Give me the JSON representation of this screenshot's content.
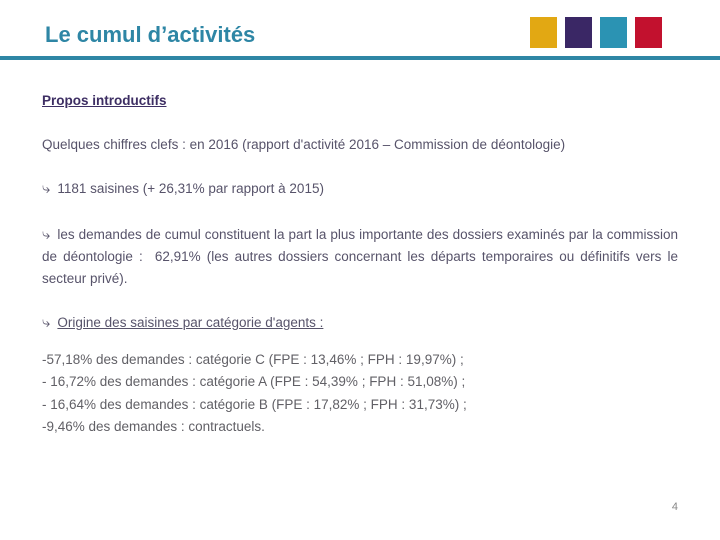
{
  "slide": {
    "title": "Le cumul d’activités",
    "accent_color": "#2E86A5",
    "logo_squares": [
      {
        "name": "gold-square",
        "color": "#E2A813"
      },
      {
        "name": "purple-square",
        "color": "#3A2765"
      },
      {
        "name": "teal-square",
        "color": "#2B93B3"
      },
      {
        "name": "red-square",
        "color": "#C2112E"
      }
    ],
    "page_number": "4"
  },
  "body": {
    "heading": "Propos introductifs",
    "intro": "Quelques chiffres clefs : en 2016 (rapport d'activité 2016 – Commission de déontologie)",
    "bullet_icon": "⤷",
    "bullet1": "1181 saisines (+ 26,31% par rapport à 2015)",
    "bullet2": "les demandes de cumul constituent la part la plus importante des dossiers examinés par la commission de déontologie :  62,91% (les autres dossiers concernant les départs temporaires ou définitifs vers le secteur privé).",
    "bullet3": "Origine des saisines par catégorie d'agents :",
    "list": [
      "-57,18% des demandes : catégorie C (FPE : 13,46% ; FPH : 19,97%) ;",
      "- 16,72% des demandes : catégorie A (FPE : 54,39% ; FPH : 51,08%) ;",
      "- 16,64% des demandes : catégorie B (FPE : 17,82% ; FPH : 31,73%) ;",
      "-9,46% des demandes : contractuels."
    ]
  }
}
